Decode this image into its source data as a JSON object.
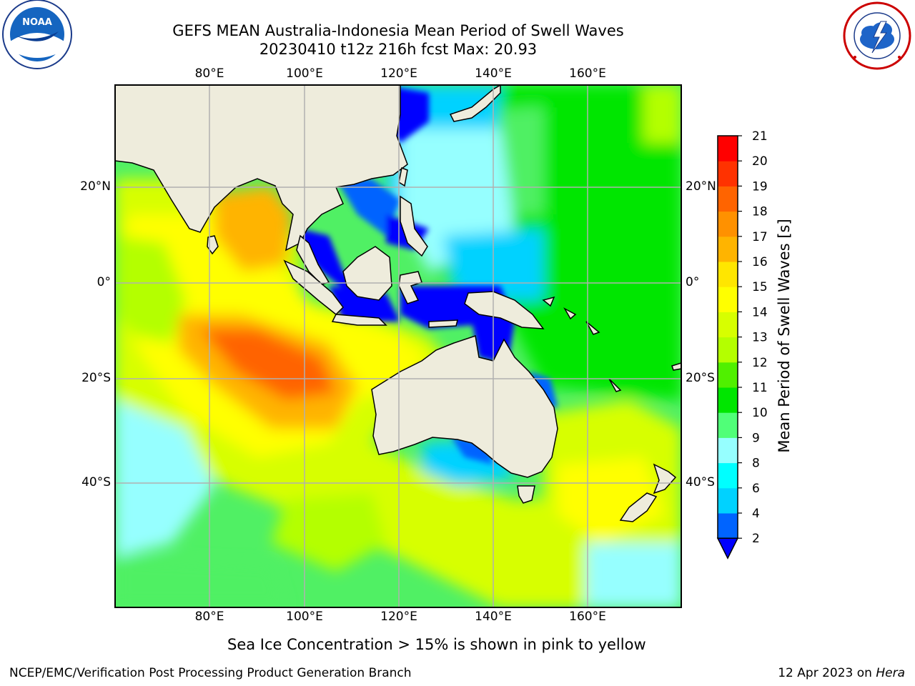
{
  "title_line1": "GEFS MEAN Australia-Indonesia Mean Period of Swell Waves",
  "title_line2": "20230410 t12z 216h fcst   Max: 20.93",
  "top_lon_ticks": [
    "80°E",
    "100°E",
    "120°E",
    "140°E",
    "160°E"
  ],
  "bottom_lon_ticks": [
    "80°E",
    "100°E",
    "120°E",
    "140°E",
    "160°E"
  ],
  "lat_ticks": [
    "20°N",
    "0°",
    "20°S",
    "40°S"
  ],
  "colorbar": {
    "label": "Mean Period of Swell Waves [s]",
    "tick_labels": [
      "21",
      "20",
      "19",
      "18",
      "17",
      "16",
      "15",
      "14",
      "13",
      "12",
      "11",
      "10",
      "9",
      "8",
      "6",
      "4",
      "2"
    ],
    "levels": [
      2,
      4,
      6,
      8,
      9,
      10,
      11,
      12,
      13,
      14,
      15,
      16,
      17,
      18,
      19,
      20,
      21
    ],
    "colors": [
      "#0064ff",
      "#00d2ff",
      "#00ffff",
      "#96ffff",
      "#50ff78",
      "#00e600",
      "#50f000",
      "#b4ff00",
      "#d7ff00",
      "#ffff00",
      "#ffe600",
      "#ffb400",
      "#ff9100",
      "#ff6400",
      "#ff3200",
      "#ff0000"
    ],
    "extend_color": "#0000ff"
  },
  "footnote": "Sea Ice Concentration > 15% is shown in pink to yellow",
  "credit_left": "NCEP/EMC/Verification Post Processing Product Generation Branch",
  "credit_right_date": "12 Apr 2023 on ",
  "credit_right_system": "Hera",
  "logos": {
    "left": "noaa-logo",
    "left_text": "NOAA",
    "right": "national-weather-service-logo"
  }
}
